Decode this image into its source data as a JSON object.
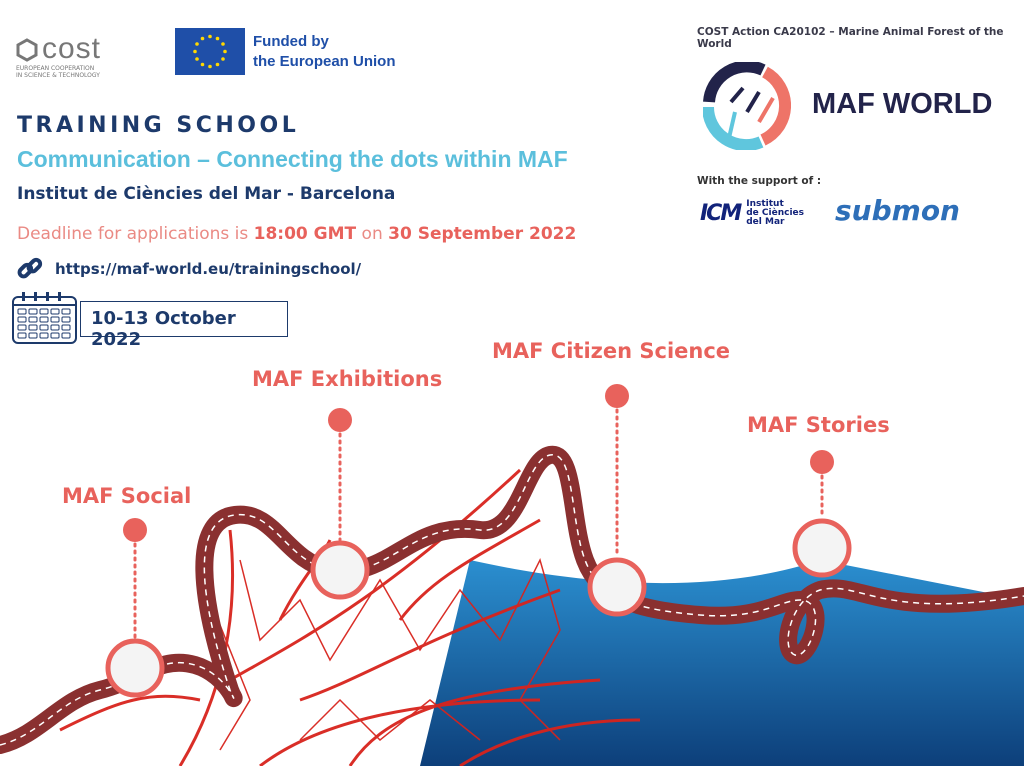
{
  "header": {
    "cost_logo": {
      "word": "cost",
      "subtitle_line1": "EUROPEAN COOPERATION",
      "subtitle_line2": "IN SCIENCE & TECHNOLOGY"
    },
    "eu": {
      "line1": "Funded by",
      "line2": "the European Union"
    },
    "action": "COST Action CA20102 – Marine Animal Forest of the World",
    "maf_logo_text": "MAF WORLD",
    "support_label": "With the support of :",
    "icm": {
      "mark": "ICM",
      "line1": "Institut",
      "line2": "de Ciències",
      "line3": "del Mar"
    },
    "submon": "submon"
  },
  "event": {
    "title": "TRAINING SCHOOL",
    "subtitle": "Communication – Connecting the dots within MAF",
    "place": "Institut de Ciències del Mar - Barcelona",
    "deadline_prefix": "Deadline for applications is ",
    "deadline_time": "18:00 GMT",
    "deadline_mid": " on ",
    "deadline_date": "30 September 2022",
    "url": "https://maf-world.eu/trainingschool/",
    "dates": "10-13 October 2022"
  },
  "milestones": [
    {
      "label": "MAF Social"
    },
    {
      "label": "MAF Exhibitions"
    },
    {
      "label": "MAF Citizen Science"
    },
    {
      "label": "MAF Stories"
    }
  ],
  "colors": {
    "coral": "#e8625c",
    "navy": "#1d3a6b",
    "cyan": "#5bbfdc",
    "road": "#8a3030",
    "sea": "#1f7fc4"
  }
}
